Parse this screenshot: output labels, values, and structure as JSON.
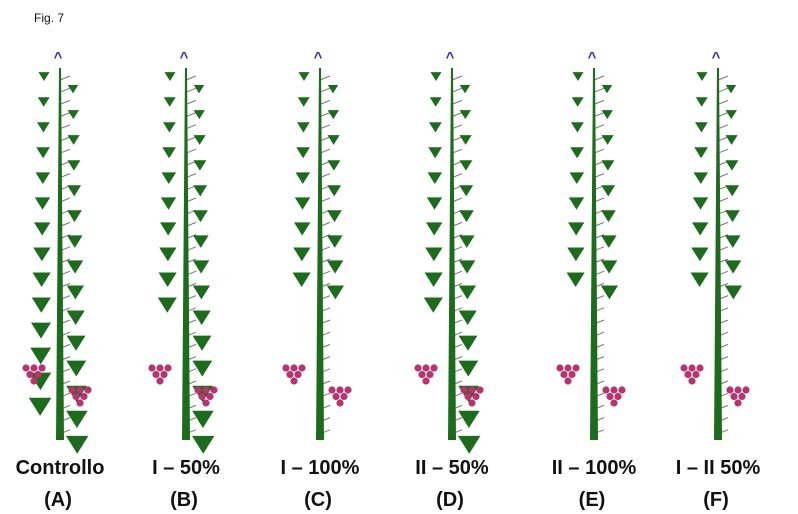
{
  "figure": {
    "label": "Fig. 7"
  },
  "plants": [
    {
      "apex": "^",
      "name": "Controllo",
      "letter": "(A)"
    },
    {
      "apex": "^",
      "name": "I – 50%",
      "letter": "(B)"
    },
    {
      "apex": "^",
      "name": "I – 100%",
      "letter": "(C)"
    },
    {
      "apex": "^",
      "name": "II – 50%",
      "letter": "(D)"
    },
    {
      "apex": "^",
      "name": "II – 100%",
      "letter": "(E)"
    },
    {
      "apex": "^",
      "name": "I – II 50%",
      "letter": "(F)"
    }
  ]
}
